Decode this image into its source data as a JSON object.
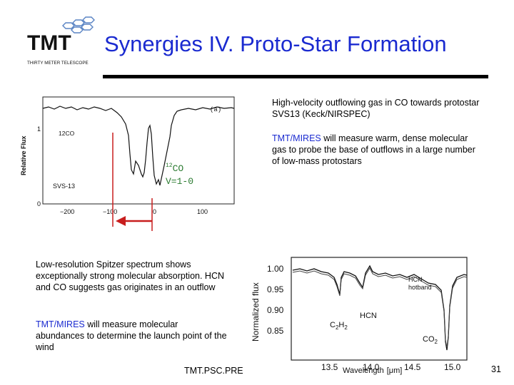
{
  "title": "Synergies IV. Proto-Star Formation",
  "logo": {
    "abbrev": "TMT",
    "full": "THIRTY METER TELESCOPE"
  },
  "co_plot": {
    "ylabel": "Relative Flux",
    "panel_tag": "(a)",
    "species_label": "12CO",
    "source_label": "SVS-13",
    "overlay_line1_sup": "12",
    "overlay_line1": "CO",
    "overlay_line2": "V=1-0",
    "x_ticks": [
      "−200",
      "−100",
      "0",
      "100"
    ],
    "y_ticks": [
      "1",
      "0"
    ],
    "arrow_color": "#c81e1e",
    "overlay_color": "#2a7a30"
  },
  "notes": {
    "outflow": "High-velocity outflowing gas in CO towards protostar SVS13 (Keck/NIRSPEC)",
    "mires1_prefix": "TMT/MIRES",
    "mires1_rest": " will measure warm, dense molecular gas to probe the base of outflows in a large number of low-mass protostars",
    "spitzer": "Low-resolution Spitzer spectrum shows exceptionally strong molecular absorption. HCN and CO suggests gas originates in an outflow",
    "mires2_prefix": "TMT/MIRES",
    "mires2_rest": " will measure molecular abundances to determine the launch point of the wind"
  },
  "spitzer_plot": {
    "ylabel": "Normalized flux",
    "xlabel_prefix": "Wavelength",
    "xlabel_unit": "[μm]",
    "y_ticks": [
      "1.00",
      "0.95",
      "0.90",
      "0.85"
    ],
    "x_ticks": [
      "13.5",
      "14.0",
      "14.5",
      "15.0"
    ],
    "legend_line1": "HCN",
    "legend_line2": "hotband",
    "hcn_label": "HCN",
    "c2h2_main": "C",
    "c2h2_sub1": "2",
    "c2h2_mid": "H",
    "c2h2_sub2": "2",
    "co2_main": "CO",
    "co2_sub": "2"
  },
  "footer": "TMT.PSC.PRE",
  "page_number": "31"
}
